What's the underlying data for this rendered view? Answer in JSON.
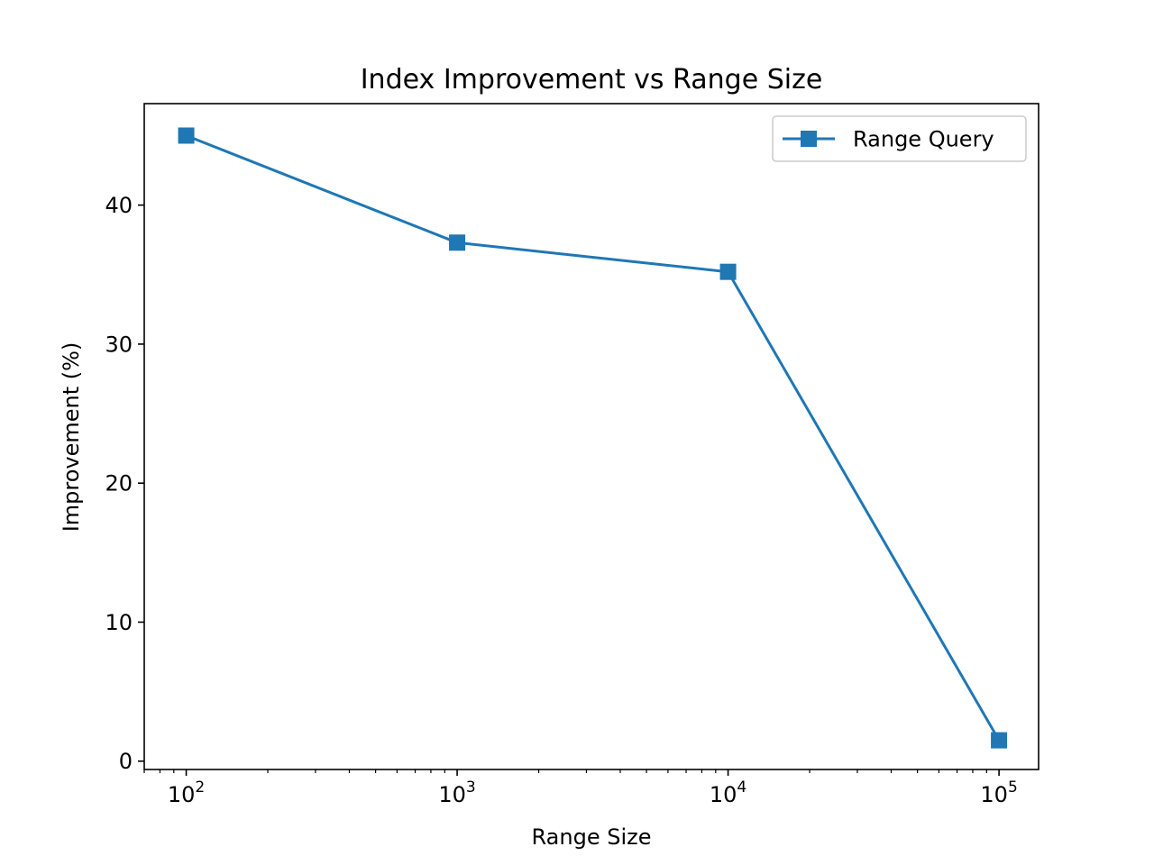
{
  "chart_data": {
    "type": "line",
    "title": "Index Improvement vs Range Size",
    "xlabel": "Range Size",
    "ylabel": "Improvement (%)",
    "x_scale": "log",
    "xlim": [
      70,
      140000
    ],
    "ylim": [
      -0.6,
      47.3
    ],
    "x": [
      100,
      1000,
      10000,
      100000
    ],
    "x_ticks": [
      {
        "value": 100,
        "base": "10",
        "exp": "2"
      },
      {
        "value": 1000,
        "base": "10",
        "exp": "3"
      },
      {
        "value": 10000,
        "base": "10",
        "exp": "4"
      },
      {
        "value": 100000,
        "base": "10",
        "exp": "5"
      }
    ],
    "y_ticks": [
      0,
      10,
      20,
      30,
      40
    ],
    "series": [
      {
        "name": "Range Query",
        "values": [
          45.0,
          37.3,
          35.2,
          1.5
        ],
        "color": "#1f77b4",
        "marker": "square"
      }
    ],
    "grid": false,
    "legend_position": "top-right"
  }
}
